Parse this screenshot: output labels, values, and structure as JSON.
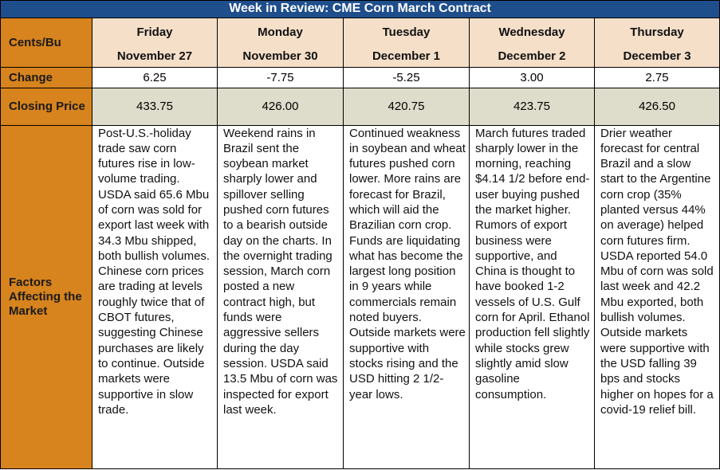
{
  "title": "Week in Review: CME Corn March Contract",
  "row_labels": {
    "units": "Cents/Bu",
    "change": "Change",
    "closing": "Closing Price",
    "factors": "Factors Affecting the Market"
  },
  "days": [
    {
      "day": "Friday",
      "date": "November 27",
      "change": "6.25",
      "closing": "433.75",
      "factors": "Post-U.S.-holiday trade saw corn futures rise in low-volume trading. USDA said 65.6 Mbu of corn was sold for export last week with 34.3 Mbu shipped, both bullish volumes. Chinese corn prices are trading at levels roughly twice that of CBOT futures, suggesting Chinese purchases are likely to continue. Outside markets were supportive in slow trade."
    },
    {
      "day": "Monday",
      "date": "November 30",
      "change": "-7.75",
      "closing": "426.00",
      "factors": "Weekend rains in Brazil sent the soybean market sharply lower and spillover selling pushed corn futures to a bearish outside day on the charts. In the overnight trading session, March corn posted a new contract high, but funds were aggressive sellers during the day session. USDA said 13.5 Mbu of corn was inspected for export last week."
    },
    {
      "day": "Tuesday",
      "date": "December 1",
      "change": "-5.25",
      "closing": "420.75",
      "factors": "Continued weakness in soybean and wheat futures pushed corn lower. More rains are forecast for Brazil, which will aid the Brazilian corn crop. Funds are liquidating what has become the largest long position in 9 years while commercials remain noted buyers. Outside markets were supportive with stocks rising and the USD hitting 2 1/2-year lows."
    },
    {
      "day": "Wednesday",
      "date": "December 2",
      "change": "3.00",
      "closing": "423.75",
      "factors": "March futures traded sharply lower in the morning, reaching $4.14 1/2 before end-user buying pushed the market higher. Rumors of export business were supportive, and China is thought to have booked 1-2 vessels of U.S. Gulf corn for April. Ethanol production fell slightly while stocks grew slightly amid slow gasoline consumption."
    },
    {
      "day": "Thursday",
      "date": "December 3",
      "change": "2.75",
      "closing": "426.50",
      "factors": "Drier weather forecast for central Brazil and a slow start to the Argentine corn crop (35% planted versus 44% on average) helped corn futures firm. USDA reported 54.0 Mbu of corn was sold last week and 42.2 Mbu exported, both bullish volumes. Outside markets were supportive with the USD falling 39 bps and stocks higher on hopes for a covid-19 relief bill."
    }
  ],
  "colors": {
    "title_bg": "#1f4e8c",
    "row_label_bg": "#d7831e",
    "day_header_bg": "#f5dfc8",
    "closing_bg": "#deddcb"
  }
}
